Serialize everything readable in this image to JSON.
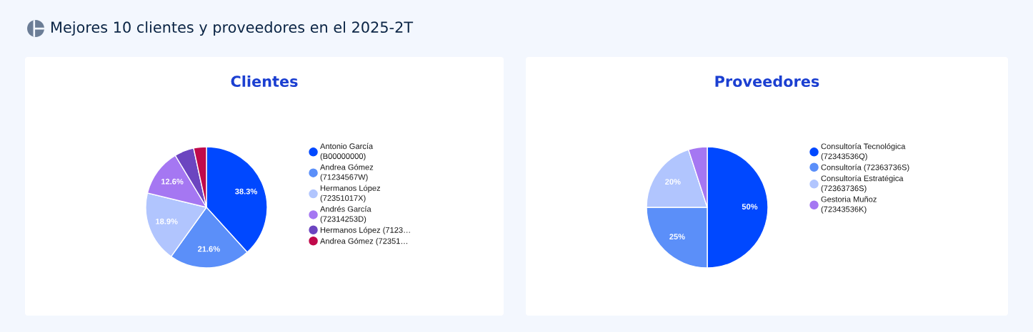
{
  "chart_data": [
    {
      "type": "other",
      "title": "Mejores 10 clientes y proveedores en el 2025-2T"
    },
    {
      "type": "pie",
      "title": "Clientes",
      "categories": [
        "Antonio García\n(B00000000)",
        "Andrea Gómez\n(71234567W)",
        "Hermanos López\n(72351017X)",
        "Andrés García\n(72314253D)",
        "Hermanos López (7123…",
        "Andrea Gómez (72351…"
      ],
      "values": [
        38.3,
        21.6,
        18.9,
        12.6,
        5.2,
        3.4
      ],
      "colors": [
        "#0048ff",
        "#5b8ff9",
        "#b1c5fe",
        "#a577f2",
        "#6c45c0",
        "#c00a4b"
      ],
      "value_labels": [
        "38.3%",
        "21.6%",
        "18.9%",
        "12.6%",
        null,
        null
      ],
      "legend": "right"
    },
    {
      "type": "pie",
      "title": "Proveedores",
      "categories": [
        "Consultoría Tecnológica\n(72343536Q)",
        "Consultoría (72363736S)",
        "Consultoría Estratégica\n(72363736S)",
        "Gestoria Muñoz\n(72343536K)"
      ],
      "values": [
        50,
        25,
        20,
        5
      ],
      "colors": [
        "#0048ff",
        "#5b8ff9",
        "#b1c5fe",
        "#a577f2"
      ],
      "value_labels": [
        "50%",
        "25%",
        "20%",
        null
      ],
      "legend": "right"
    }
  ]
}
